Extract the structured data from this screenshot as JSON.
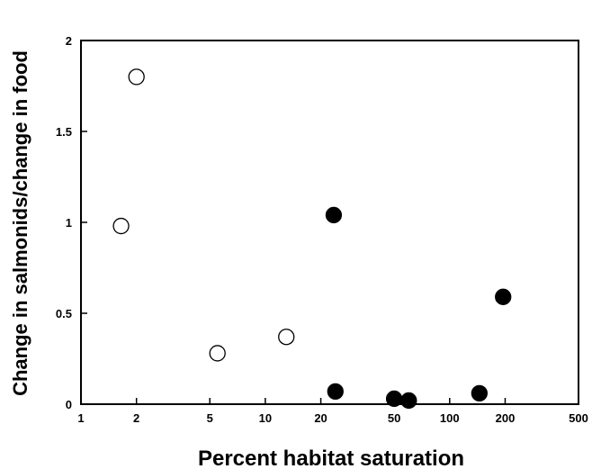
{
  "chart_data": {
    "type": "scatter",
    "title": "",
    "xlabel": "Percent habitat saturation",
    "ylabel": "Change in salmonids/change in food",
    "xscale": "log",
    "xlim": [
      1,
      500
    ],
    "ylim": [
      0,
      2
    ],
    "xticks": [
      1,
      2,
      5,
      10,
      20,
      50,
      100,
      200,
      500
    ],
    "xtick_labels": [
      "1",
      "2",
      "5",
      "10",
      "20",
      "50",
      "100",
      "200",
      "500"
    ],
    "yticks": [
      0,
      0.5,
      1,
      1.5,
      2
    ],
    "ytick_labels": [
      "0",
      "0.5",
      "1",
      "1.5",
      "2"
    ],
    "grid": false,
    "series": [
      {
        "marker": "open-circle",
        "color": "#000000",
        "points": [
          {
            "x": 1.65,
            "y": 0.98
          },
          {
            "x": 2.0,
            "y": 1.8
          },
          {
            "x": 5.5,
            "y": 0.28
          },
          {
            "x": 13.0,
            "y": 0.37
          }
        ]
      },
      {
        "marker": "filled-circle",
        "color": "#000000",
        "points": [
          {
            "x": 23.5,
            "y": 1.04
          },
          {
            "x": 24.0,
            "y": 0.07
          },
          {
            "x": 50.0,
            "y": 0.03
          },
          {
            "x": 60.0,
            "y": 0.02
          },
          {
            "x": 145.0,
            "y": 0.06
          },
          {
            "x": 195.0,
            "y": 0.59
          }
        ]
      }
    ]
  }
}
